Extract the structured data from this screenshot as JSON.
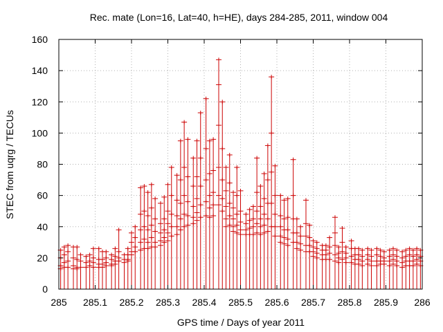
{
  "chart_data": {
    "type": "scatter",
    "title": "Rec. mate (Lon=16, Lat=40, h=HE), days 284-285, 2011, window 004",
    "xlabel": "GPS time / Days of year 2011",
    "ylabel": "STEC from uqrg / TECUs",
    "xlim": [
      285,
      286
    ],
    "ylim": [
      0,
      160
    ],
    "xticks": [
      285,
      285.1,
      285.2,
      285.3,
      285.4,
      285.5,
      285.6,
      285.7,
      285.8,
      285.9,
      286
    ],
    "xtick_labels": [
      "285",
      "285.1",
      "285.2",
      "285.3",
      "285.4",
      "285.5",
      "285.6",
      "285.7",
      "285.8",
      "285.9",
      "286"
    ],
    "yticks": [
      0,
      20,
      40,
      60,
      80,
      100,
      120,
      140,
      160
    ],
    "ytick_labels": [
      "0",
      "20",
      "40",
      "60",
      "80",
      "100",
      "120",
      "140",
      "160"
    ],
    "grid": true,
    "color": "#cc0000",
    "description_series": "Vertical error bars from 0 to an upper value, with horizontal tick marks at intermediate sampled STEC values",
    "series": [
      {
        "name": "STEC",
        "points": [
          {
            "x": 285.005,
            "top": 25,
            "marks": [
              20,
              15,
              13
            ]
          },
          {
            "x": 285.015,
            "top": 27,
            "marks": [
              22,
              17,
              14
            ]
          },
          {
            "x": 285.025,
            "top": 28,
            "marks": [
              24,
              18,
              14
            ]
          },
          {
            "x": 285.04,
            "top": 27,
            "marks": [
              20,
              15,
              13
            ]
          },
          {
            "x": 285.05,
            "top": 27,
            "marks": [
              19,
              14,
              13
            ]
          },
          {
            "x": 285.06,
            "top": 22,
            "marks": [
              18,
              14
            ]
          },
          {
            "x": 285.075,
            "top": 21,
            "marks": [
              17,
              14
            ]
          },
          {
            "x": 285.085,
            "top": 22,
            "marks": [
              18,
              15
            ]
          },
          {
            "x": 285.095,
            "top": 26,
            "marks": [
              20,
              17,
              14
            ]
          },
          {
            "x": 285.11,
            "top": 26,
            "marks": [
              19,
              16,
              14
            ]
          },
          {
            "x": 285.12,
            "top": 24,
            "marks": [
              19,
              16,
              14
            ]
          },
          {
            "x": 285.13,
            "top": 24,
            "marks": [
              20,
              17,
              15
            ]
          },
          {
            "x": 285.145,
            "top": 22,
            "marks": [
              19,
              16,
              15
            ]
          },
          {
            "x": 285.155,
            "top": 26,
            "marks": [
              21,
              18,
              16
            ]
          },
          {
            "x": 285.165,
            "top": 38,
            "marks": [
              24,
              20,
              18
            ]
          },
          {
            "x": 285.18,
            "top": 22,
            "marks": [
              19,
              17
            ]
          },
          {
            "x": 285.19,
            "top": 26,
            "marks": [
              22,
              19,
              18
            ]
          },
          {
            "x": 285.2,
            "top": 36,
            "marks": [
              30,
              24,
              22
            ]
          },
          {
            "x": 285.21,
            "top": 40,
            "marks": [
              33,
              27,
              24
            ]
          },
          {
            "x": 285.225,
            "top": 65,
            "marks": [
              48,
              38,
              30,
              25
            ]
          },
          {
            "x": 285.235,
            "top": 66,
            "marks": [
              50,
              40,
              32,
              26
            ]
          },
          {
            "x": 285.245,
            "top": 62,
            "marks": [
              47,
              38,
              30,
              26
            ]
          },
          {
            "x": 285.255,
            "top": 67,
            "marks": [
              52,
              41,
              33,
              27
            ]
          },
          {
            "x": 285.265,
            "top": 58,
            "marks": [
              45,
              37,
              30,
              27
            ]
          },
          {
            "x": 285.28,
            "top": 55,
            "marks": [
              42,
              36,
              31,
              28
            ]
          },
          {
            "x": 285.29,
            "top": 59,
            "marks": [
              45,
              38,
              33,
              30
            ]
          },
          {
            "x": 285.3,
            "top": 67,
            "marks": [
              50,
              42,
              36,
              31
            ]
          },
          {
            "x": 285.31,
            "top": 78,
            "marks": [
              60,
              48,
              40,
              34
            ]
          },
          {
            "x": 285.325,
            "top": 73,
            "marks": [
              57,
              47,
              40,
              35
            ]
          },
          {
            "x": 285.335,
            "top": 95,
            "marks": [
              70,
              55,
              45,
              38
            ]
          },
          {
            "x": 285.345,
            "top": 107,
            "marks": [
              78,
              60,
              48,
              40
            ]
          },
          {
            "x": 285.355,
            "top": 96,
            "marks": [
              72,
              56,
              47,
              41
            ]
          },
          {
            "x": 285.37,
            "top": 84,
            "marks": [
              66,
              53,
              46,
              42
            ]
          },
          {
            "x": 285.38,
            "top": 95,
            "marks": [
              72,
              58,
              49,
              44
            ]
          },
          {
            "x": 285.39,
            "top": 113,
            "marks": [
              84,
              66,
              54,
              46
            ]
          },
          {
            "x": 285.405,
            "top": 122,
            "marks": [
              90,
              70,
              56,
              47
            ]
          },
          {
            "x": 285.415,
            "top": 95,
            "marks": [
              74,
              60,
              52,
              46
            ]
          },
          {
            "x": 285.425,
            "top": 96,
            "marks": [
              76,
              62,
              54,
              47
            ]
          },
          {
            "x": 285.44,
            "top": 147,
            "marks": [
              131,
              105,
              78,
              60,
              54
            ]
          },
          {
            "x": 285.45,
            "top": 120,
            "marks": [
              90,
              70,
              58,
              50
            ]
          },
          {
            "x": 285.46,
            "top": 78,
            "marks": [
              63,
              53,
              45,
              40
            ]
          },
          {
            "x": 285.47,
            "top": 86,
            "marks": [
              68,
              55,
              47,
              41
            ]
          },
          {
            "x": 285.48,
            "top": 62,
            "marks": [
              52,
              45,
              40,
              37
            ]
          },
          {
            "x": 285.49,
            "top": 78,
            "marks": [
              60,
              48,
              41,
              36
            ]
          },
          {
            "x": 285.5,
            "top": 63,
            "marks": [
              50,
              43,
              38,
              35
            ]
          },
          {
            "x": 285.515,
            "top": 48,
            "marks": [
              42,
              38,
              35
            ]
          },
          {
            "x": 285.525,
            "top": 51,
            "marks": [
              44,
              39,
              35
            ]
          },
          {
            "x": 285.535,
            "top": 53,
            "marks": [
              45,
              40,
              35
            ]
          },
          {
            "x": 285.545,
            "top": 84,
            "marks": [
              62,
              50,
              42,
              36
            ]
          },
          {
            "x": 285.555,
            "top": 66,
            "marks": [
              53,
              45,
              40,
              35
            ]
          },
          {
            "x": 285.565,
            "top": 74,
            "marks": [
              58,
              48,
              41,
              36
            ]
          },
          {
            "x": 285.575,
            "top": 92,
            "marks": [
              70,
              55,
              45,
              37
            ]
          },
          {
            "x": 285.585,
            "top": 136,
            "marks": [
              100,
              75,
              55,
              40
            ]
          },
          {
            "x": 285.595,
            "top": 79,
            "marks": [
              60,
              48,
              40,
              34
            ]
          },
          {
            "x": 285.61,
            "top": 60,
            "marks": [
              47,
              40,
              34,
              30
            ]
          },
          {
            "x": 285.62,
            "top": 57,
            "marks": [
              45,
              38,
              33,
              29
            ]
          },
          {
            "x": 285.63,
            "top": 58,
            "marks": [
              46,
              38,
              32,
              28
            ]
          },
          {
            "x": 285.645,
            "top": 83,
            "marks": [
              60,
              45,
              36,
              30
            ]
          },
          {
            "x": 285.655,
            "top": 45,
            "marks": [
              36,
              30,
              26
            ]
          },
          {
            "x": 285.665,
            "top": 40,
            "marks": [
              34,
              29,
              25
            ]
          },
          {
            "x": 285.68,
            "top": 57,
            "marks": [
              42,
              34,
              28,
              24
            ]
          },
          {
            "x": 285.69,
            "top": 41,
            "marks": [
              33,
              28,
              24
            ]
          },
          {
            "x": 285.7,
            "top": 31,
            "marks": [
              27,
              24,
              21
            ]
          },
          {
            "x": 285.71,
            "top": 30,
            "marks": [
              26,
              23,
              20
            ]
          },
          {
            "x": 285.725,
            "top": 28,
            "marks": [
              25,
              22,
              19
            ]
          },
          {
            "x": 285.735,
            "top": 28,
            "marks": [
              25,
              22,
              19
            ]
          },
          {
            "x": 285.745,
            "top": 33,
            "marks": [
              27,
              23,
              19
            ]
          },
          {
            "x": 285.76,
            "top": 46,
            "marks": [
              36,
              28,
              22,
              18
            ]
          },
          {
            "x": 285.77,
            "top": 27,
            "marks": [
              23,
              20,
              17
            ]
          },
          {
            "x": 285.78,
            "top": 39,
            "marks": [
              30,
              24,
              19
            ]
          },
          {
            "x": 285.79,
            "top": 27,
            "marks": [
              23,
              20,
              17
            ]
          },
          {
            "x": 285.805,
            "top": 31,
            "marks": [
              26,
              21,
              17
            ]
          },
          {
            "x": 285.815,
            "top": 26,
            "marks": [
              22,
              19,
              16
            ]
          },
          {
            "x": 285.825,
            "top": 26,
            "marks": [
              22,
              19,
              16
            ]
          },
          {
            "x": 285.835,
            "top": 25,
            "marks": [
              21,
              18,
              15
            ]
          },
          {
            "x": 285.85,
            "top": 26,
            "marks": [
              22,
              19,
              16
            ]
          },
          {
            "x": 285.86,
            "top": 25,
            "marks": [
              21,
              18,
              15
            ]
          },
          {
            "x": 285.875,
            "top": 26,
            "marks": [
              22,
              18,
              15
            ]
          },
          {
            "x": 285.885,
            "top": 25,
            "marks": [
              21,
              18,
              16
            ]
          },
          {
            "x": 285.895,
            "top": 24,
            "marks": [
              20,
              18,
              16
            ]
          },
          {
            "x": 285.91,
            "top": 25,
            "marks": [
              21,
              18,
              15
            ]
          },
          {
            "x": 285.92,
            "top": 26,
            "marks": [
              22,
              19,
              16
            ]
          },
          {
            "x": 285.93,
            "top": 25,
            "marks": [
              21,
              18,
              15
            ]
          },
          {
            "x": 285.945,
            "top": 24,
            "marks": [
              20,
              17,
              14
            ]
          },
          {
            "x": 285.955,
            "top": 25,
            "marks": [
              21,
              18,
              15
            ]
          },
          {
            "x": 285.965,
            "top": 26,
            "marks": [
              22,
              18,
              15
            ]
          },
          {
            "x": 285.975,
            "top": 25,
            "marks": [
              21,
              18,
              15
            ]
          },
          {
            "x": 285.985,
            "top": 26,
            "marks": [
              22,
              19,
              16
            ]
          },
          {
            "x": 285.995,
            "top": 25,
            "marks": [
              21,
              18,
              15
            ]
          }
        ]
      }
    ]
  }
}
